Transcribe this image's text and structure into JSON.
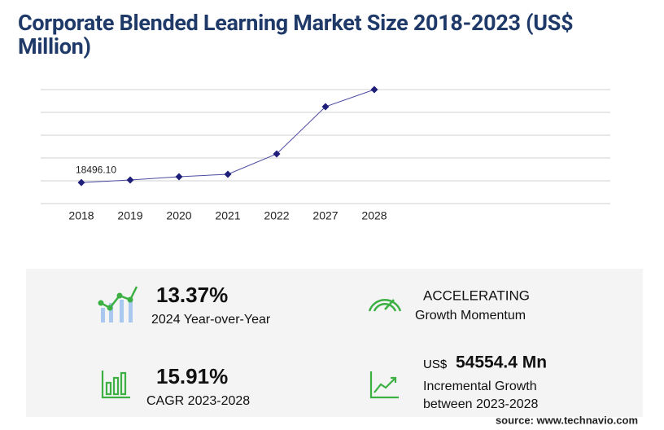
{
  "chart_data": {
    "type": "line",
    "title": "Corporate Blended Learning Market Size 2018-2023 (US$ Million)",
    "categories": [
      "2018",
      "2019",
      "2020",
      "2021",
      "2022",
      "2027",
      "2028"
    ],
    "values": [
      18496.1,
      20700,
      23600,
      25700,
      43600,
      85000,
      100000
    ],
    "value_labels": [
      "18496.10",
      null,
      null,
      null,
      null,
      null,
      null
    ],
    "color": "#1f1f7a",
    "ylim": [
      0,
      100000
    ],
    "yticks": [
      0,
      20000,
      40000,
      60000,
      80000,
      100000
    ],
    "grid": true
  },
  "kpis": [
    {
      "value": "13.37%",
      "label": "2024 Year-over-Year"
    },
    {
      "value": "ACCELERATING",
      "label": "Growth Momentum"
    },
    {
      "value": "15.91%",
      "label": "CAGR 2023-2028"
    },
    {
      "prefix": "US$",
      "value": "54554.4 Mn",
      "label": "Incremental Growth",
      "label2": "between 2023-2028"
    }
  ],
  "source": "source: www.technavio.com"
}
